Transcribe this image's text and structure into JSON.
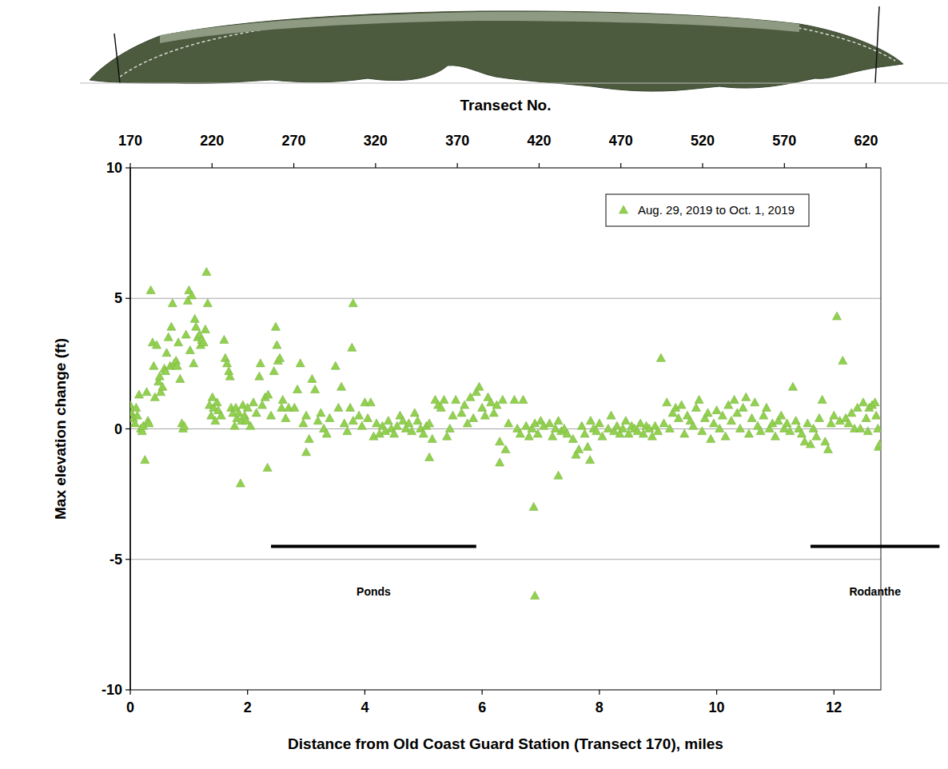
{
  "chart_data": {
    "type": "scatter",
    "x_label": "Distance from Old Coast Guard Station (Transect 170), miles",
    "y_label": "Max elevation change (ft)",
    "x2_label": "Transect No.",
    "xlim": [
      0,
      12.8
    ],
    "xticks": [
      0,
      2,
      4,
      6,
      8,
      10,
      12
    ],
    "x2lim": [
      170,
      629
    ],
    "x2ticks": [
      170,
      220,
      270,
      320,
      370,
      420,
      470,
      520,
      570,
      620
    ],
    "ylim": [
      -10,
      10
    ],
    "yticks": [
      -10,
      -5,
      0,
      5,
      10
    ],
    "grid": true,
    "legend": "top-right",
    "series": [
      {
        "name": "Aug. 29, 2019 to Oct. 1, 2019",
        "color": "#92D050",
        "marker": "triangle",
        "x": [
          0.0,
          0.02,
          0.05,
          0.08,
          0.1,
          0.12,
          0.15,
          0.18,
          0.2,
          0.22,
          0.25,
          0.28,
          0.3,
          0.32,
          0.35,
          0.38,
          0.4,
          0.42,
          0.45,
          0.48,
          0.5,
          0.52,
          0.55,
          0.58,
          0.6,
          0.62,
          0.65,
          0.68,
          0.7,
          0.72,
          0.75,
          0.78,
          0.8,
          0.82,
          0.85,
          0.88,
          0.9,
          0.92,
          0.95,
          0.98,
          1.0,
          1.02,
          1.05,
          1.08,
          1.1,
          1.12,
          1.15,
          1.18,
          1.2,
          1.22,
          1.25,
          1.28,
          1.3,
          1.32,
          1.35,
          1.38,
          1.4,
          1.42,
          1.45,
          1.48,
          1.5,
          1.55,
          1.6,
          1.62,
          1.65,
          1.68,
          1.7,
          1.72,
          1.75,
          1.78,
          1.8,
          1.82,
          1.85,
          1.88,
          1.9,
          1.92,
          1.95,
          1.98,
          2.0,
          2.05,
          2.1,
          2.15,
          2.2,
          2.22,
          2.25,
          2.3,
          2.35,
          2.4,
          2.45,
          2.48,
          2.5,
          2.52,
          2.55,
          2.58,
          2.6,
          2.65,
          2.7,
          2.34,
          2.8,
          2.85,
          2.9,
          2.95,
          3.0,
          3.05,
          3.1,
          3.15,
          3.2,
          3.25,
          3.3,
          3.35,
          3.4,
          3.0,
          3.5,
          3.55,
          3.6,
          3.65,
          3.7,
          3.75,
          3.8,
          3.78,
          3.8,
          3.9,
          3.95,
          4.0,
          4.05,
          4.1,
          4.15,
          4.2,
          4.25,
          4.3,
          4.35,
          4.4,
          4.45,
          4.5,
          4.55,
          4.6,
          4.65,
          4.7,
          4.75,
          4.8,
          4.85,
          4.9,
          4.95,
          5.0,
          5.05,
          5.1,
          5.15,
          5.2,
          5.25,
          5.3,
          5.35,
          5.4,
          5.45,
          5.5,
          5.55,
          5.1,
          5.65,
          5.7,
          5.75,
          5.8,
          5.85,
          5.9,
          5.95,
          6.0,
          6.05,
          6.1,
          6.15,
          6.2,
          6.25,
          6.3,
          6.35,
          6.4,
          6.45,
          6.3,
          6.55,
          6.6,
          6.65,
          6.7,
          6.75,
          6.8,
          6.85,
          6.9,
          6.95,
          7.0,
          7.05,
          6.88,
          6.9,
          7.15,
          7.2,
          7.25,
          7.3,
          7.35,
          7.4,
          7.45,
          7.3,
          7.55,
          7.6,
          7.65,
          7.7,
          7.75,
          7.8,
          7.85,
          7.9,
          7.95,
          8.0,
          8.05,
          7.84,
          8.15,
          8.2,
          8.25,
          8.3,
          8.35,
          8.4,
          8.45,
          8.5,
          8.55,
          8.6,
          8.65,
          8.7,
          8.75,
          8.8,
          8.85,
          8.9,
          8.95,
          9.0,
          9.05,
          9.1,
          9.15,
          9.2,
          9.25,
          9.3,
          9.35,
          9.4,
          9.45,
          9.5,
          9.55,
          9.6,
          9.65,
          9.7,
          9.75,
          9.8,
          9.85,
          9.9,
          9.95,
          10.0,
          10.05,
          10.1,
          10.15,
          10.2,
          10.25,
          10.3,
          10.35,
          10.4,
          10.45,
          10.5,
          10.55,
          10.6,
          10.65,
          10.7,
          10.75,
          10.8,
          10.85,
          10.9,
          10.95,
          11.0,
          11.05,
          11.1,
          11.15,
          11.2,
          11.25,
          11.3,
          11.35,
          11.4,
          11.45,
          11.5,
          11.55,
          11.6,
          11.65,
          11.7,
          11.75,
          11.8,
          11.85,
          11.9,
          11.95,
          12.0,
          12.05,
          12.1,
          12.15,
          12.2,
          12.25,
          12.3,
          12.35,
          12.4,
          12.45,
          12.5,
          12.55,
          12.58,
          12.6,
          12.65,
          12.7,
          12.72,
          12.75,
          12.76,
          12.78
        ],
        "values": [
          0.9,
          0.6,
          0.4,
          0.2,
          0.8,
          0.5,
          1.3,
          0.0,
          -0.1,
          0.1,
          -1.2,
          1.4,
          0.3,
          0.2,
          5.3,
          3.3,
          2.4,
          1.2,
          3.2,
          1.8,
          2.0,
          1.4,
          1.6,
          2.3,
          2.2,
          2.9,
          3.5,
          2.4,
          3.9,
          4.8,
          2.5,
          2.6,
          2.4,
          3.3,
          1.9,
          0.2,
          0.0,
          0.1,
          3.6,
          4.9,
          5.3,
          3.0,
          5.1,
          2.5,
          4.2,
          3.9,
          3.5,
          3.6,
          3.2,
          3.4,
          3.3,
          3.8,
          6.0,
          4.8,
          0.9,
          0.5,
          1.2,
          0.8,
          0.3,
          1.0,
          0.7,
          0.5,
          3.4,
          2.7,
          2.5,
          2.2,
          2.0,
          0.8,
          0.6,
          0.1,
          0.8,
          0.4,
          0.6,
          -2.1,
          0.3,
          0.9,
          0.5,
          0.3,
          0.8,
          0.1,
          1.0,
          0.6,
          2.0,
          2.5,
          0.9,
          1.2,
          1.3,
          0.5,
          2.2,
          3.9,
          3.2,
          2.6,
          2.7,
          0.8,
          1.1,
          0.4,
          0.8,
          -1.5,
          0.8,
          1.5,
          2.5,
          0.2,
          0.5,
          -0.4,
          1.9,
          1.5,
          0.3,
          0.6,
          0.0,
          -0.2,
          0.4,
          -0.9,
          2.4,
          0.8,
          1.6,
          0.2,
          -0.1,
          0.8,
          0.3,
          3.1,
          4.8,
          0.5,
          0.1,
          1.0,
          0.4,
          1.0,
          -0.3,
          0.2,
          -0.2,
          0.1,
          -0.1,
          0.3,
          0.0,
          -0.2,
          0.1,
          0.5,
          0.3,
          0.0,
          0.2,
          -0.1,
          0.6,
          0.3,
          0.0,
          -0.2,
          0.1,
          0.2,
          -0.4,
          1.1,
          0.9,
          0.8,
          1.1,
          -0.3,
          0.0,
          0.5,
          1.1,
          -1.1,
          0.6,
          0.9,
          0.2,
          1.2,
          0.4,
          1.4,
          1.6,
          0.8,
          0.5,
          1.2,
          1.0,
          0.6,
          0.9,
          -0.5,
          1.1,
          -0.8,
          0.2,
          -1.3,
          1.1,
          0.0,
          -0.2,
          1.1,
          0.1,
          -0.3,
          0.0,
          0.2,
          -0.2,
          0.3,
          0.1,
          -3.0,
          -6.4,
          0.2,
          -0.3,
          0.0,
          0.3,
          -0.1,
          0.0,
          -0.2,
          -1.8,
          -0.4,
          -1.0,
          -0.8,
          0.1,
          -0.2,
          -0.7,
          0.3,
          0.0,
          -0.1,
          0.2,
          -0.3,
          -1.2,
          0.0,
          0.5,
          -0.1,
          0.1,
          -0.2,
          0.0,
          0.3,
          -0.2,
          0.1,
          0.0,
          -0.1,
          0.2,
          -0.2,
          0.1,
          0.0,
          -0.3,
          0.1,
          -0.1,
          2.7,
          0.2,
          1.0,
          0.0,
          0.6,
          0.8,
          0.4,
          0.9,
          -0.2,
          0.5,
          0.3,
          0.1,
          0.8,
          1.1,
          -0.1,
          0.4,
          0.6,
          -0.4,
          0.2,
          0.7,
          0.0,
          0.5,
          -0.3,
          0.9,
          0.3,
          1.1,
          0.6,
          0.0,
          0.8,
          1.2,
          -0.2,
          0.4,
          1.0,
          0.1,
          -0.1,
          0.5,
          0.8,
          0.0,
          0.2,
          -0.3,
          0.3,
          0.5,
          0.0,
          0.2,
          -0.1,
          1.6,
          0.3,
          0.0,
          -0.2,
          -0.5,
          0.2,
          -0.6,
          0.0,
          -0.3,
          0.4,
          1.1,
          -0.5,
          -0.8,
          0.2,
          0.5,
          4.3,
          0.3,
          2.6,
          0.4,
          0.2,
          0.6,
          0.0,
          0.8,
          0.0,
          1.0,
          0.4,
          -0.1,
          0.8,
          0.9,
          1.0,
          0.5,
          0.0,
          -0.7,
          -0.6
        ]
      }
    ],
    "annotations": [
      {
        "text": "Ponds",
        "x": [
          2.4,
          5.9
        ],
        "y": -4.5
      },
      {
        "text": "Rodanthe",
        "x": [
          11.6,
          13.8
        ],
        "y": -4.5
      }
    ]
  }
}
